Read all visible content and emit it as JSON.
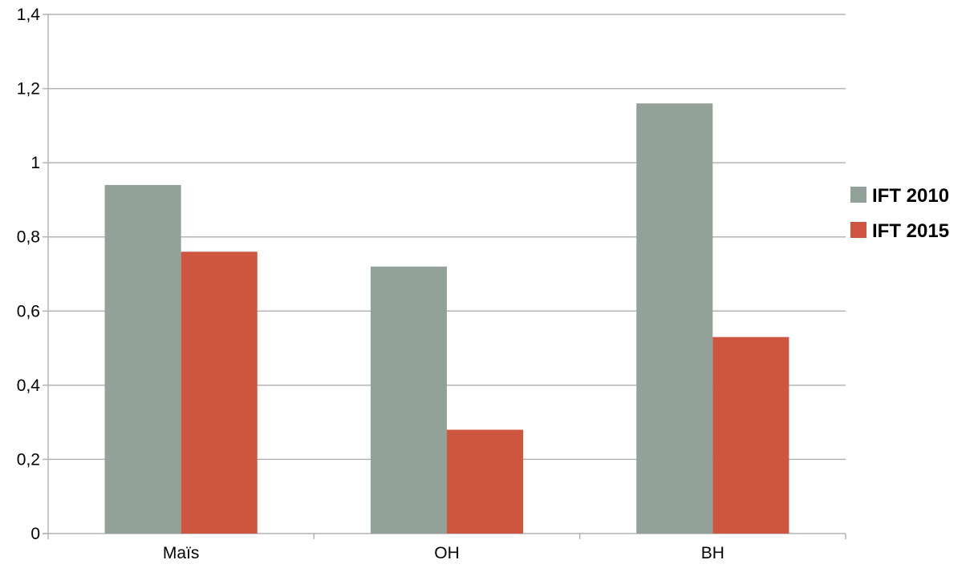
{
  "chart_data": {
    "type": "bar",
    "categories": [
      "Maïs",
      "OH",
      "BH"
    ],
    "series": [
      {
        "name": "IFT 2010",
        "color": "#93a298",
        "values": [
          0.94,
          0.72,
          1.16
        ]
      },
      {
        "name": "IFT 2015",
        "color": "#ce5640",
        "values": [
          0.76,
          0.28,
          0.53
        ]
      }
    ],
    "ylim": [
      0,
      1.4
    ],
    "yticks": [
      "0",
      "0,2",
      "0,4",
      "0,6",
      "0,8",
      "1",
      "1,2",
      "1,4"
    ],
    "grid": true,
    "legend_position": "right",
    "title": "",
    "xlabel": "",
    "ylabel": ""
  }
}
